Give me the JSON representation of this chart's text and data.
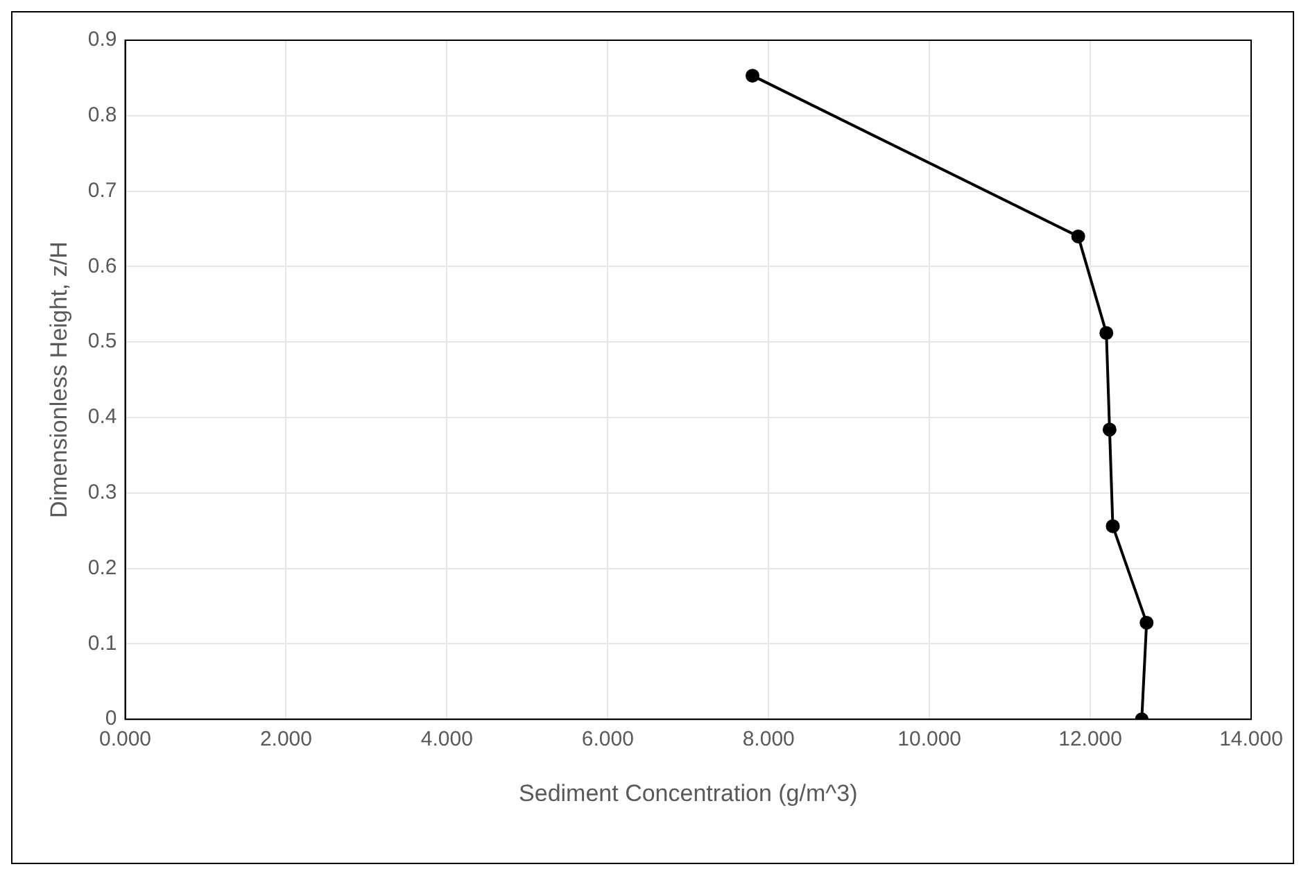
{
  "chart_data": {
    "type": "line",
    "xlabel": "Sediment Concentration (g/m^3)",
    "ylabel": "Dimensionless Height, z/H",
    "x": [
      7.8,
      11.85,
      12.2,
      12.24,
      12.28,
      12.7,
      12.64
    ],
    "series": [
      {
        "color": "#000000",
        "values": [
          0.853,
          0.64,
          0.512,
          0.384,
          0.256,
          0.128,
          0
        ]
      }
    ],
    "xlim": [
      0,
      14
    ],
    "xticks": [
      {
        "value": 0,
        "label": "0.000"
      },
      {
        "value": 2,
        "label": "2.000"
      },
      {
        "value": 4,
        "label": "4.000"
      },
      {
        "value": 6,
        "label": "6.000"
      },
      {
        "value": 8,
        "label": "8.000"
      },
      {
        "value": 10,
        "label": "10.000"
      },
      {
        "value": 12,
        "label": "12.000"
      },
      {
        "value": 14,
        "label": "14.000"
      }
    ],
    "ylim": [
      0,
      0.9
    ],
    "yticks": [
      0,
      0.1,
      0.2,
      0.3,
      0.4,
      0.5,
      0.6,
      0.7,
      0.8,
      0.9
    ],
    "grid": true,
    "marker": "circle",
    "line_style": "solid"
  }
}
